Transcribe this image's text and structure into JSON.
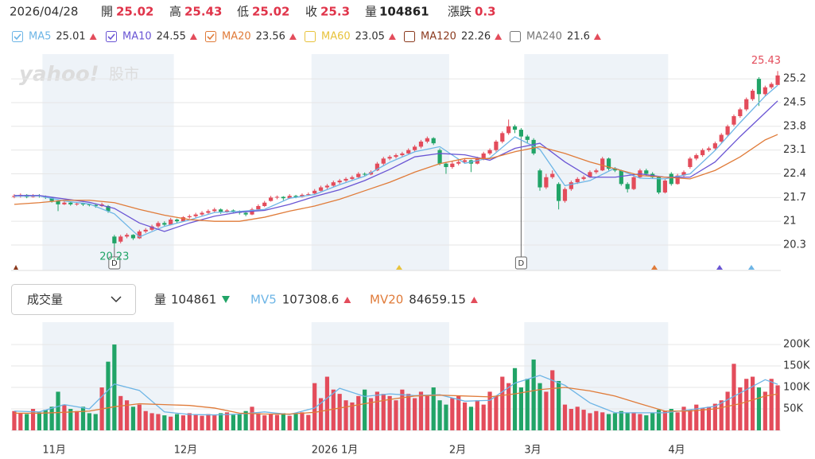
{
  "header": {
    "date": "2026/04/28",
    "open": "開",
    "high": "高",
    "low": "低",
    "close": "收",
    "volume": "量",
    "change_label": "漲跌",
    "change": 0.3
  },
  "watermark": {
    "brand": "yahoo!",
    "product": "股市"
  },
  "chart_data": {
    "type": "candlestick",
    "up_color": "#e34c5b",
    "down_color": "#21a467",
    "grid": true,
    "ylim": [
      19.55,
      25.93
    ],
    "yticks": [
      20.3,
      21,
      21.7,
      22.4,
      23.1,
      23.8,
      24.5,
      25.2
    ],
    "categories": [
      null,
      null,
      null,
      null,
      null,
      "11月",
      null,
      null,
      null,
      null,
      null,
      null,
      null,
      null,
      null,
      null,
      null,
      null,
      null,
      null,
      null,
      null,
      null,
      null,
      null,
      null,
      "12月",
      null,
      null,
      null,
      null,
      null,
      null,
      null,
      null,
      null,
      null,
      null,
      null,
      null,
      null,
      null,
      null,
      null,
      null,
      null,
      null,
      null,
      "2026 1月",
      null,
      null,
      null,
      null,
      null,
      null,
      null,
      null,
      null,
      null,
      null,
      null,
      null,
      null,
      null,
      null,
      null,
      null,
      null,
      null,
      null,
      "2月",
      null,
      null,
      null,
      null,
      null,
      null,
      null,
      null,
      null,
      null,
      null,
      "3月",
      null,
      null,
      null,
      null,
      null,
      null,
      null,
      null,
      null,
      null,
      null,
      null,
      null,
      null,
      null,
      null,
      null,
      null,
      null,
      null,
      null,
      null,
      "4月",
      null,
      null,
      null,
      null,
      null,
      null,
      null,
      null,
      null,
      null,
      null,
      null,
      null,
      null,
      null,
      null,
      null
    ],
    "ohlc": [
      [
        21.72,
        21.8,
        21.68,
        21.75
      ],
      [
        21.75,
        21.82,
        21.7,
        21.78
      ],
      [
        21.78,
        21.8,
        21.68,
        21.72
      ],
      [
        21.72,
        21.8,
        21.7,
        21.76
      ],
      [
        21.76,
        21.8,
        21.7,
        21.74
      ],
      [
        21.74,
        21.76,
        21.66,
        21.7
      ],
      [
        21.7,
        21.72,
        21.55,
        21.6
      ],
      [
        21.6,
        21.62,
        21.3,
        21.5
      ],
      [
        21.5,
        21.6,
        21.48,
        21.55
      ],
      [
        21.55,
        21.58,
        21.46,
        21.5
      ],
      [
        21.5,
        21.56,
        21.46,
        21.52
      ],
      [
        21.52,
        21.55,
        21.45,
        21.5
      ],
      [
        21.5,
        21.52,
        21.44,
        21.48
      ],
      [
        21.48,
        21.5,
        21.4,
        21.45
      ],
      [
        21.45,
        21.55,
        21.42,
        21.5
      ],
      [
        21.45,
        21.48,
        21.25,
        21.3
      ],
      [
        20.55,
        20.6,
        20.23,
        20.35
      ],
      [
        20.4,
        20.6,
        20.35,
        20.55
      ],
      [
        20.55,
        20.65,
        20.5,
        20.6
      ],
      [
        20.6,
        20.62,
        20.45,
        20.5
      ],
      [
        20.5,
        20.75,
        20.48,
        20.7
      ],
      [
        20.7,
        20.8,
        20.65,
        20.75
      ],
      [
        20.75,
        20.9,
        20.72,
        20.85
      ],
      [
        20.85,
        21.0,
        20.8,
        20.95
      ],
      [
        20.95,
        21.0,
        20.85,
        20.9
      ],
      [
        20.9,
        21.1,
        20.88,
        21.05
      ],
      [
        21.05,
        21.08,
        20.95,
        21.0
      ],
      [
        21.0,
        21.15,
        20.98,
        21.12
      ],
      [
        21.12,
        21.2,
        21.08,
        21.15
      ],
      [
        21.15,
        21.25,
        21.1,
        21.2
      ],
      [
        21.2,
        21.3,
        21.15,
        21.25
      ],
      [
        21.25,
        21.35,
        21.2,
        21.3
      ],
      [
        21.3,
        21.4,
        21.25,
        21.35
      ],
      [
        21.35,
        21.38,
        21.22,
        21.28
      ],
      [
        21.28,
        21.36,
        21.25,
        21.32
      ],
      [
        21.32,
        21.35,
        21.25,
        21.3
      ],
      [
        21.3,
        21.32,
        21.2,
        21.25
      ],
      [
        21.25,
        21.28,
        21.15,
        21.2
      ],
      [
        21.2,
        21.4,
        21.18,
        21.35
      ],
      [
        21.35,
        21.5,
        21.32,
        21.45
      ],
      [
        21.45,
        21.6,
        21.42,
        21.55
      ],
      [
        21.6,
        21.75,
        21.58,
        21.7
      ],
      [
        21.7,
        21.76,
        21.65,
        21.72
      ],
      [
        21.72,
        21.74,
        21.62,
        21.68
      ],
      [
        21.68,
        21.8,
        21.66,
        21.75
      ],
      [
        21.75,
        21.78,
        21.68,
        21.72
      ],
      [
        21.72,
        21.82,
        21.7,
        21.78
      ],
      [
        21.78,
        21.85,
        21.75,
        21.8
      ],
      [
        21.82,
        21.95,
        21.8,
        21.9
      ],
      [
        21.9,
        22.05,
        21.88,
        22.0
      ],
      [
        22.0,
        22.1,
        21.95,
        22.05
      ],
      [
        22.05,
        22.2,
        22.02,
        22.15
      ],
      [
        22.15,
        22.25,
        22.1,
        22.2
      ],
      [
        22.2,
        22.3,
        22.15,
        22.25
      ],
      [
        22.25,
        22.35,
        22.2,
        22.3
      ],
      [
        22.3,
        22.45,
        22.28,
        22.4
      ],
      [
        22.4,
        22.44,
        22.34,
        22.38
      ],
      [
        22.38,
        22.5,
        22.36,
        22.45
      ],
      [
        22.5,
        22.75,
        22.48,
        22.7
      ],
      [
        22.7,
        22.9,
        22.65,
        22.85
      ],
      [
        22.85,
        22.95,
        22.8,
        22.9
      ],
      [
        22.9,
        23.0,
        22.85,
        22.95
      ],
      [
        22.95,
        23.05,
        22.9,
        23.0
      ],
      [
        23.0,
        23.15,
        22.98,
        23.1
      ],
      [
        23.1,
        23.25,
        23.05,
        23.2
      ],
      [
        23.2,
        23.4,
        23.15,
        23.35
      ],
      [
        23.35,
        23.5,
        23.3,
        23.45
      ],
      [
        23.45,
        23.48,
        23.25,
        23.3
      ],
      [
        23.1,
        23.15,
        22.65,
        22.7
      ],
      [
        22.7,
        22.75,
        22.4,
        22.6
      ],
      [
        22.6,
        22.78,
        22.55,
        22.7
      ],
      [
        22.7,
        22.8,
        22.65,
        22.75
      ],
      [
        22.75,
        22.85,
        22.7,
        22.8
      ],
      [
        22.8,
        22.82,
        22.45,
        22.7
      ],
      [
        22.7,
        22.9,
        22.68,
        22.85
      ],
      [
        22.85,
        23.05,
        22.8,
        23.0
      ],
      [
        23.0,
        23.15,
        22.95,
        23.1
      ],
      [
        23.1,
        23.4,
        23.05,
        23.35
      ],
      [
        23.35,
        23.65,
        23.3,
        23.6
      ],
      [
        23.6,
        24.0,
        23.55,
        23.8
      ],
      [
        23.8,
        23.85,
        23.6,
        23.7
      ],
      [
        23.7,
        23.75,
        23.45,
        23.5
      ],
      [
        23.5,
        23.55,
        23.3,
        23.4
      ],
      [
        23.4,
        23.45,
        22.95,
        23.0
      ],
      [
        22.5,
        22.55,
        21.9,
        22.0
      ],
      [
        22.0,
        22.4,
        21.95,
        22.3
      ],
      [
        22.3,
        22.5,
        22.25,
        22.4
      ],
      [
        22.1,
        22.15,
        21.35,
        21.6
      ],
      [
        21.6,
        22.0,
        21.55,
        21.95
      ],
      [
        21.95,
        22.2,
        21.9,
        22.15
      ],
      [
        22.15,
        22.3,
        22.1,
        22.25
      ],
      [
        22.25,
        22.35,
        22.2,
        22.3
      ],
      [
        22.3,
        22.5,
        22.28,
        22.45
      ],
      [
        22.45,
        22.55,
        22.4,
        22.5
      ],
      [
        22.5,
        22.9,
        22.48,
        22.85
      ],
      [
        22.85,
        22.88,
        22.5,
        22.55
      ],
      [
        22.55,
        22.6,
        22.45,
        22.5
      ],
      [
        22.5,
        22.52,
        22.05,
        22.1
      ],
      [
        22.1,
        22.15,
        21.85,
        21.95
      ],
      [
        21.95,
        22.35,
        21.92,
        22.3
      ],
      [
        22.3,
        22.55,
        22.28,
        22.5
      ],
      [
        22.5,
        22.55,
        22.35,
        22.4
      ],
      [
        22.4,
        22.45,
        22.25,
        22.3
      ],
      [
        22.3,
        22.32,
        21.8,
        21.85
      ],
      [
        21.85,
        22.25,
        21.82,
        22.2
      ],
      [
        22.4,
        22.45,
        22.05,
        22.1
      ],
      [
        22.1,
        22.4,
        22.08,
        22.35
      ],
      [
        22.35,
        22.5,
        22.3,
        22.45
      ],
      [
        22.6,
        22.9,
        22.55,
        22.85
      ],
      [
        22.85,
        23.0,
        22.8,
        22.95
      ],
      [
        22.95,
        23.15,
        22.9,
        23.1
      ],
      [
        23.1,
        23.2,
        23.05,
        23.15
      ],
      [
        23.15,
        23.35,
        23.1,
        23.3
      ],
      [
        23.35,
        23.6,
        23.3,
        23.55
      ],
      [
        23.55,
        23.85,
        23.5,
        23.8
      ],
      [
        23.85,
        24.15,
        23.8,
        24.1
      ],
      [
        24.1,
        24.35,
        24.05,
        24.3
      ],
      [
        24.3,
        24.65,
        24.25,
        24.6
      ],
      [
        24.6,
        24.9,
        24.55,
        24.85
      ],
      [
        25.2,
        25.25,
        24.4,
        24.75
      ],
      [
        24.75,
        25.0,
        24.7,
        24.95
      ],
      [
        24.95,
        25.1,
        24.9,
        25.05
      ],
      [
        25.02,
        25.43,
        25.02,
        25.3
      ]
    ],
    "events": [
      {
        "index": 16,
        "label": "D"
      },
      {
        "index": 81,
        "label": "D"
      }
    ],
    "ma": {
      "x": [
        0,
        4,
        8,
        12,
        16,
        20,
        24,
        28,
        32,
        36,
        40,
        44,
        48,
        52,
        56,
        60,
        64,
        68,
        72,
        76,
        80,
        84,
        88,
        92,
        96,
        100,
        104,
        108,
        112,
        116,
        120,
        122
      ],
      "series": [
        {
          "name": "MA5",
          "color": "#6db5e6",
          "checked": true,
          "values": [
            21.74,
            21.75,
            21.6,
            21.51,
            21.22,
            20.54,
            20.85,
            21.04,
            21.26,
            21.29,
            21.35,
            21.68,
            21.79,
            22.08,
            22.33,
            22.74,
            23.05,
            23.2,
            22.71,
            22.87,
            23.49,
            23.12,
            22.05,
            22.2,
            22.57,
            22.27,
            22.25,
            22.4,
            23.09,
            23.91,
            24.69,
            25.01
          ]
        },
        {
          "name": "MA10",
          "color": "#6a55d4",
          "checked": true,
          "values": [
            21.76,
            21.76,
            21.66,
            21.56,
            21.38,
            20.95,
            20.7,
            20.95,
            21.15,
            21.27,
            21.32,
            21.5,
            21.73,
            21.93,
            22.2,
            22.53,
            22.9,
            23.0,
            22.96,
            22.8,
            23.15,
            23.3,
            22.75,
            22.3,
            22.3,
            22.4,
            22.3,
            22.3,
            22.75,
            23.5,
            24.2,
            24.55
          ]
        },
        {
          "name": "MA20",
          "color": "#e07b39",
          "checked": true,
          "values": [
            21.5,
            21.55,
            21.62,
            21.62,
            21.55,
            21.35,
            21.18,
            21.05,
            21.0,
            21.0,
            21.12,
            21.3,
            21.45,
            21.65,
            21.9,
            22.15,
            22.45,
            22.7,
            22.85,
            22.85,
            23.05,
            23.2,
            23.0,
            22.75,
            22.55,
            22.35,
            22.3,
            22.25,
            22.5,
            22.9,
            23.4,
            23.56
          ]
        },
        {
          "name": "MA60",
          "color": "#e8c33c",
          "checked": false,
          "value": 23.05
        },
        {
          "name": "MA120",
          "color": "#8b3a1e",
          "checked": false,
          "value": 22.26
        },
        {
          "name": "MA240",
          "color": "#777777",
          "checked": false,
          "value": 21.6
        }
      ]
    },
    "volume": {
      "selector": "成交量",
      "label": "量",
      "ylim": [
        0,
        252000
      ],
      "yticks": [
        {
          "value": 50000,
          "label": "50K"
        },
        {
          "value": 100000,
          "label": "100K"
        },
        {
          "value": 150000,
          "label": "150K"
        },
        {
          "value": 200000,
          "label": "200K"
        }
      ],
      "values": [
        45000,
        40000,
        38000,
        50000,
        42000,
        48000,
        55000,
        90000,
        60000,
        50000,
        45000,
        55000,
        40000,
        38000,
        100000,
        160000,
        200000,
        80000,
        70000,
        55000,
        60000,
        45000,
        40000,
        38000,
        35000,
        32000,
        38000,
        35000,
        40000,
        36000,
        34000,
        38000,
        35000,
        40000,
        42000,
        36000,
        38000,
        45000,
        55000,
        40000,
        35000,
        38000,
        36000,
        40000,
        34000,
        38000,
        42000,
        36000,
        110000,
        75000,
        125000,
        95000,
        85000,
        70000,
        65000,
        80000,
        95000,
        75000,
        90000,
        85000,
        80000,
        70000,
        95000,
        85000,
        75000,
        90000,
        80000,
        100000,
        70000,
        60000,
        75000,
        80000,
        65000,
        55000,
        70000,
        60000,
        90000,
        80000,
        125000,
        110000,
        145000,
        100000,
        120000,
        165000,
        110000,
        90000,
        140000,
        115000,
        60000,
        50000,
        55000,
        48000,
        40000,
        45000,
        42000,
        38000,
        40000,
        45000,
        40000,
        42000,
        38000,
        35000,
        40000,
        48000,
        45000,
        50000,
        42000,
        55000,
        48000,
        60000,
        52000,
        55000,
        62000,
        70000,
        90000,
        155000,
        100000,
        120000,
        125000,
        100000,
        90000,
        120000,
        104861
      ],
      "series": [
        {
          "name": "MV5",
          "color": "#6db5e6",
          "values": [
            45000,
            43000,
            60000,
            50000,
            108000,
            93000,
            43000,
            37000,
            36000,
            38000,
            43000,
            37000,
            52000,
            98000,
            79000,
            85000,
            81000,
            83000,
            68000,
            70000,
            110000,
            128000,
            105000,
            64000,
            41000,
            41000,
            41000,
            48000,
            56000,
            87000,
            118000,
            107308.6
          ]
        },
        {
          "name": "MV20",
          "color": "#e07b39",
          "values": [
            40000,
            40000,
            42000,
            45000,
            55000,
            62000,
            60000,
            58000,
            52000,
            40000,
            38000,
            38000,
            42000,
            52000,
            62000,
            72000,
            80000,
            82000,
            80000,
            78000,
            85000,
            95000,
            100000,
            92000,
            80000,
            62000,
            45000,
            45000,
            50000,
            62000,
            80000,
            84659.15
          ]
        }
      ]
    }
  }
}
